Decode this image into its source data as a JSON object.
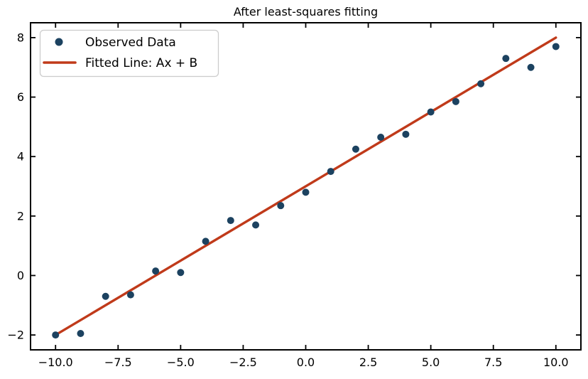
{
  "chart_data": {
    "type": "scatter",
    "title": "After least-squares fitting",
    "x": [
      -10,
      -9,
      -8,
      -7,
      -6,
      -5,
      -4,
      -3,
      -2,
      -1,
      0,
      1,
      2,
      3,
      4,
      5,
      6,
      7,
      8,
      9,
      10
    ],
    "series": [
      {
        "name": "Observed Data",
        "type": "scatter",
        "color": "#1c4260",
        "marker_radius": 5,
        "y": [
          -2.0,
          -1.95,
          -0.7,
          -0.65,
          0.15,
          0.1,
          1.15,
          1.85,
          1.7,
          2.35,
          2.8,
          3.5,
          4.25,
          4.65,
          4.75,
          5.5,
          5.85,
          6.45,
          7.3,
          7.0,
          7.7
        ]
      },
      {
        "name": "Fitted Line: Ax + B",
        "type": "line",
        "color": "#c03a1a",
        "stroke_width": 3.4,
        "slope": 0.5,
        "intercept": 3.0,
        "x_range": [
          -10,
          10
        ]
      }
    ],
    "xlim": [
      -11,
      11
    ],
    "ylim": [
      -2.5,
      8.5
    ],
    "x_ticks": [
      -10.0,
      -7.5,
      -5.0,
      -2.5,
      0.0,
      2.5,
      5.0,
      7.5,
      10.0
    ],
    "x_tick_labels": [
      "−10.0",
      "−7.5",
      "−5.0",
      "−2.5",
      "0.0",
      "2.5",
      "5.0",
      "7.5",
      "10.0"
    ],
    "y_ticks": [
      -2,
      0,
      2,
      4,
      6,
      8
    ],
    "y_tick_labels": [
      "−2",
      "0",
      "2",
      "4",
      "6",
      "8"
    ],
    "xlabel": "",
    "ylabel": "",
    "grid": false,
    "legend_position": "upper left",
    "axis_color": "#000000",
    "text_color": "#000000",
    "legend_border_color": "#cccccc",
    "background": "#ffffff"
  }
}
